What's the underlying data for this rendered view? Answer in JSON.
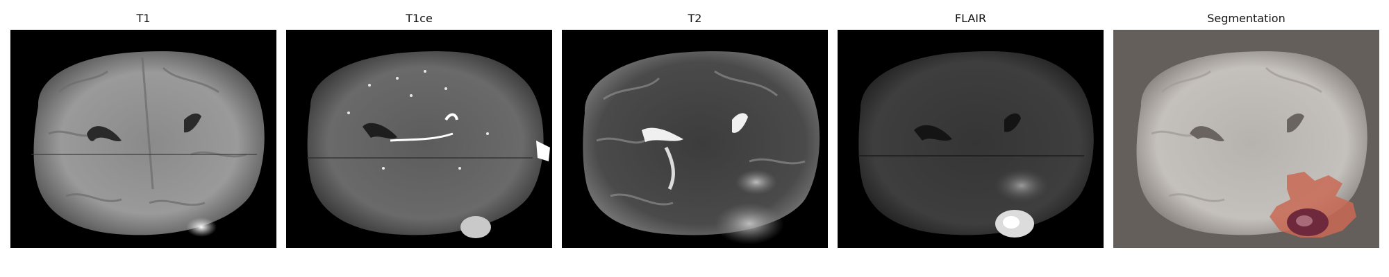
{
  "figure": {
    "panels": [
      {
        "id": "t1",
        "title": "T1"
      },
      {
        "id": "t1ce",
        "title": "T1ce"
      },
      {
        "id": "t2",
        "title": "T2"
      },
      {
        "id": "flair",
        "title": "FLAIR"
      },
      {
        "id": "seg",
        "title": "Segmentation"
      }
    ]
  },
  "colors": {
    "background": "#000000",
    "segmentation_background": "#655f5b",
    "tumor_edema": "#c96a55",
    "tumor_core": "#6e2a3c"
  }
}
